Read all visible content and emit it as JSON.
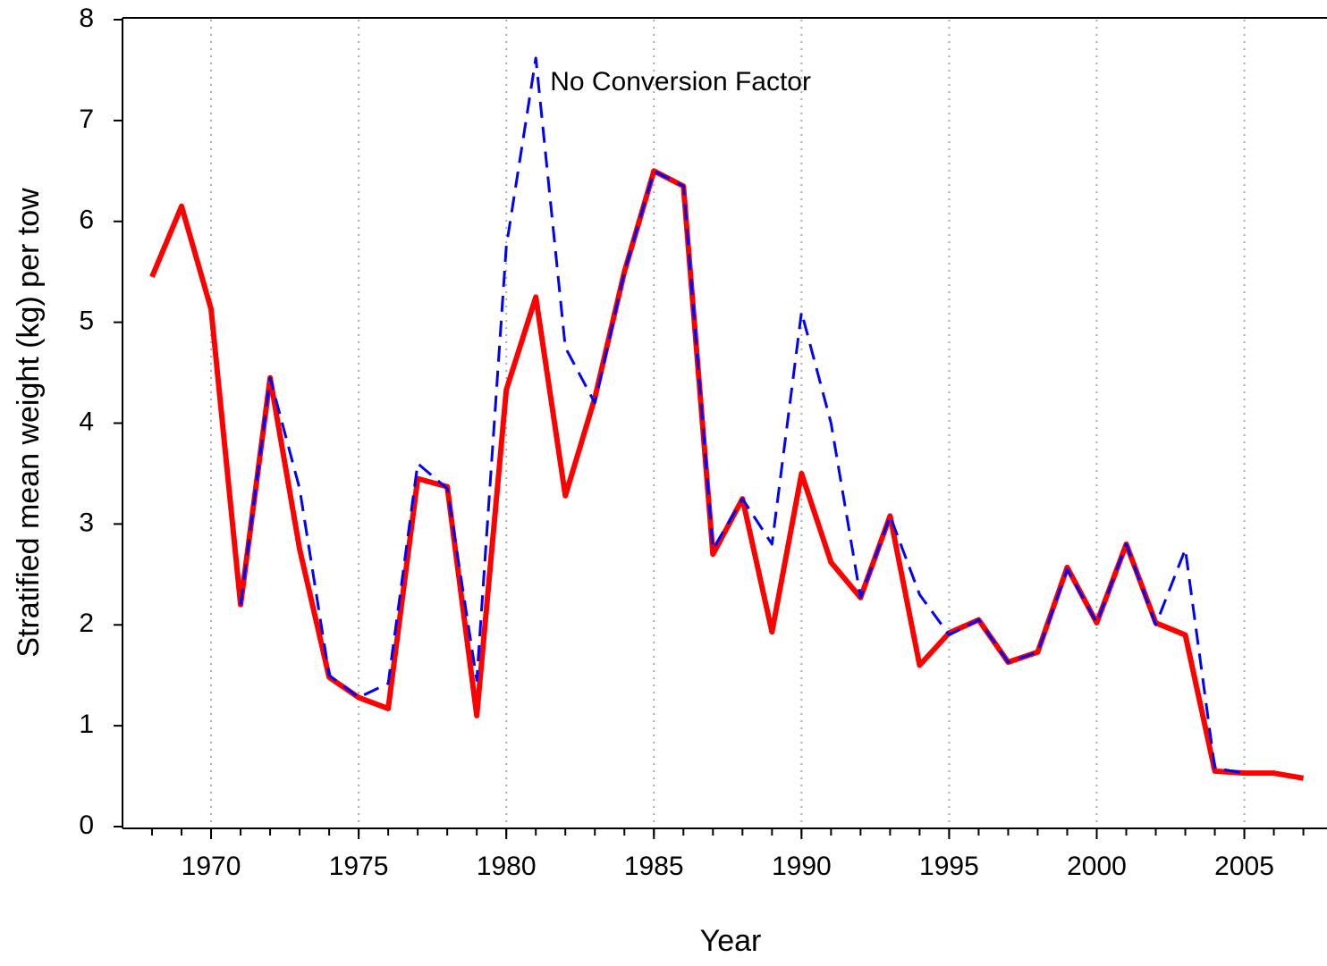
{
  "chart_data": {
    "type": "line",
    "xlabel": "Year",
    "ylabel": "Stratified mean weight (kg) per tow",
    "x": [
      1968,
      1969,
      1970,
      1971,
      1972,
      1973,
      1974,
      1975,
      1976,
      1977,
      1978,
      1979,
      1980,
      1981,
      1982,
      1983,
      1984,
      1985,
      1986,
      1987,
      1988,
      1989,
      1990,
      1991,
      1992,
      1993,
      1994,
      1995,
      1996,
      1997,
      1998,
      1999,
      2000,
      2001,
      2002,
      2003,
      2004,
      2005,
      2006,
      2007
    ],
    "series": [
      {
        "color": "#ff0000",
        "dash": false,
        "width": 6,
        "values": [
          5.45,
          6.15,
          5.13,
          2.2,
          4.45,
          2.75,
          1.48,
          1.28,
          1.17,
          3.45,
          3.37,
          1.1,
          4.33,
          5.25,
          3.28,
          4.25,
          5.5,
          6.5,
          6.35,
          2.7,
          3.25,
          1.93,
          3.5,
          2.62,
          2.27,
          3.08,
          1.6,
          1.92,
          2.05,
          1.63,
          1.73,
          2.57,
          2.02,
          2.8,
          2.02,
          1.9,
          0.55,
          0.53,
          0.53,
          0.48
        ]
      },
      {
        "name": "No Conversion Factor",
        "color": "#0000ff",
        "dash": true,
        "width": 3,
        "values": [
          null,
          null,
          null,
          2.2,
          4.45,
          3.35,
          1.5,
          1.28,
          1.42,
          3.6,
          3.35,
          1.45,
          5.75,
          7.62,
          4.75,
          4.2,
          5.5,
          6.5,
          6.35,
          2.75,
          3.25,
          2.8,
          5.1,
          4.0,
          2.27,
          3.08,
          2.3,
          1.9,
          2.05,
          1.63,
          1.73,
          2.55,
          2.02,
          2.8,
          2.0,
          2.75,
          0.58,
          0.53,
          null,
          null
        ]
      }
    ],
    "xlim": [
      1967,
      2007.8
    ],
    "xticks": [
      1970,
      1975,
      1980,
      1985,
      1990,
      1995,
      2000,
      2005
    ],
    "ylim": [
      0,
      8
    ],
    "yticks": [
      0,
      1,
      2,
      3,
      4,
      5,
      6,
      7,
      8
    ],
    "grid": "x"
  }
}
